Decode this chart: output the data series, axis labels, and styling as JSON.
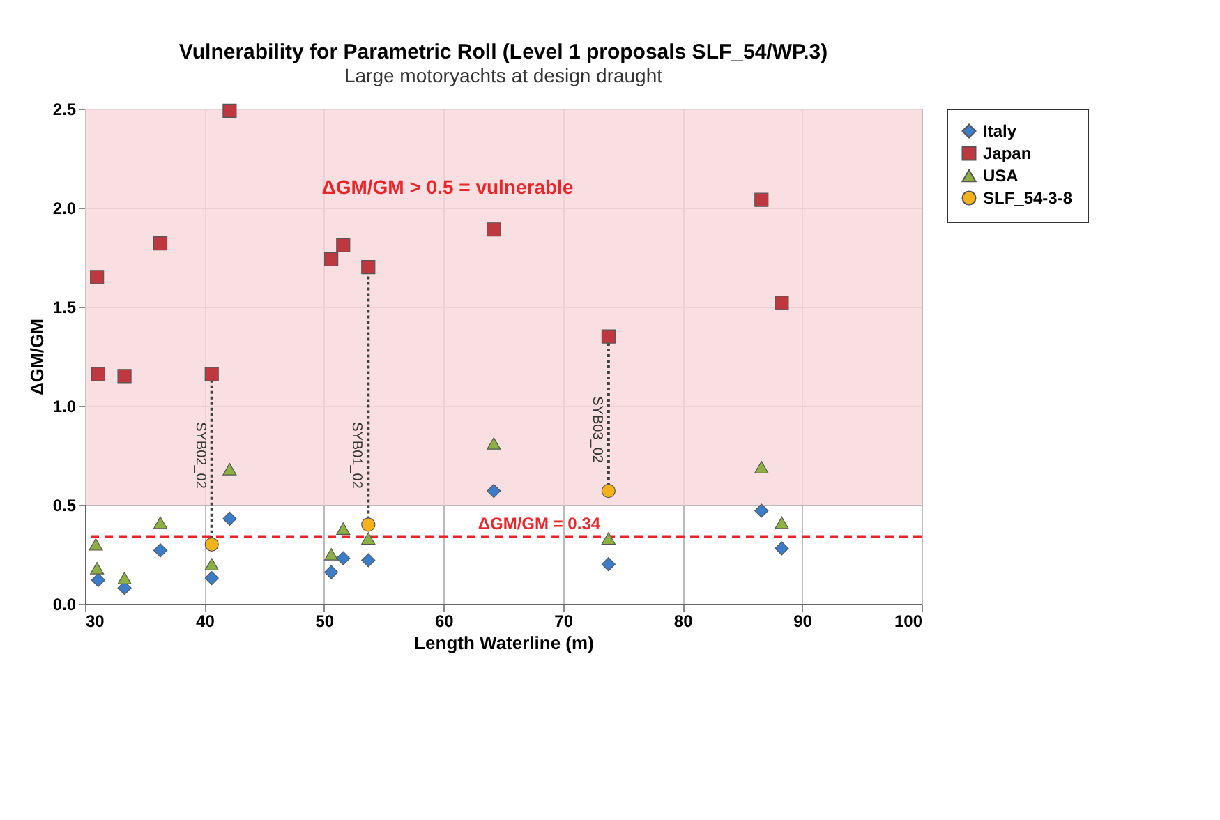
{
  "chart_data": {
    "type": "scatter",
    "title": "Vulnerability for Parametric Roll  (Level 1 proposals SLF_54/WP.3)",
    "subtitle": "Large motoryachts at design draught",
    "xlabel": "Length Waterline (m)",
    "ylabel": "ΔGM/GM",
    "xlim": [
      30,
      100
    ],
    "xticks": [
      30,
      40,
      50,
      60,
      70,
      80,
      90,
      100
    ],
    "ylim": [
      0,
      2.5
    ],
    "yticks": [
      {
        "value": 0,
        "label": "0.0"
      },
      0.5,
      {
        "value": 1,
        "label": "1.0"
      },
      1.5,
      {
        "value": 2,
        "label": "2.0"
      },
      2.5
    ],
    "grid": true,
    "legend": "right",
    "series": [
      {
        "name": "Italy",
        "color": "#3b7dc8",
        "marker": "diamond",
        "x": [
          31.1,
          33.3,
          36.3,
          40.6,
          42.1,
          50.6,
          51.6,
          53.7,
          64.2,
          73.8,
          86.6,
          88.3
        ],
        "values": [
          0.12,
          0.08,
          0.27,
          0.13,
          0.43,
          0.16,
          0.23,
          0.22,
          0.57,
          0.2,
          0.47,
          0.28
        ]
      },
      {
        "name": "Japan",
        "color": "#c0383f",
        "marker": "square",
        "x": [
          31.0,
          31.1,
          33.3,
          36.3,
          40.6,
          42.1,
          50.6,
          51.6,
          53.7,
          64.2,
          73.8,
          86.6,
          88.3
        ],
        "values": [
          1.65,
          1.16,
          1.15,
          1.82,
          1.16,
          2.49,
          1.74,
          1.81,
          1.7,
          1.89,
          1.35,
          2.04,
          1.52
        ]
      },
      {
        "name": "USA",
        "color": "#8db042",
        "marker": "triangle",
        "x": [
          30.9,
          31.0,
          33.3,
          36.3,
          40.6,
          42.1,
          50.6,
          51.6,
          53.7,
          64.2,
          73.8,
          86.6,
          88.3
        ],
        "values": [
          0.3,
          0.18,
          0.13,
          0.41,
          0.2,
          0.68,
          0.25,
          0.38,
          0.33,
          0.81,
          0.33,
          0.69,
          0.41
        ]
      },
      {
        "name": "SLF_54-3-8",
        "color": "#f5b21a",
        "marker": "circle",
        "x": [
          40.6,
          53.7,
          73.8
        ],
        "values": [
          0.3,
          0.4,
          0.57
        ]
      },
      {
        "type": "line",
        "color": "#404040",
        "line_style": "dotted",
        "x": [
          40.6,
          40.6
        ],
        "values": [
          0.3,
          1.16
        ]
      },
      {
        "type": "line",
        "color": "#404040",
        "line_style": "dotted",
        "x": [
          53.7,
          53.7
        ],
        "values": [
          0.4,
          1.7
        ]
      },
      {
        "type": "line",
        "color": "#404040",
        "line_style": "dotted",
        "x": [
          73.8,
          73.8
        ],
        "values": [
          0.57,
          1.35
        ]
      }
    ],
    "bands": [
      {
        "axis": "y",
        "from": 0.5,
        "to": 2.5,
        "label": "ΔGM/GM > 0.5 = vulnerable",
        "color": "#f8d7da"
      }
    ],
    "ref_lines": [
      {
        "axis": "y",
        "value": 0.34,
        "label": "ΔGM/GM = 0.34",
        "color": "#e8262a",
        "line_style": "dashed"
      }
    ],
    "annotations": [
      {
        "text": "SYB02_02",
        "x": 40.6,
        "y": 0.75
      },
      {
        "text": "SYB01_02",
        "x": 53.7,
        "y": 0.75
      },
      {
        "text": "SYB03_02",
        "x": 73.8,
        "y": 0.88
      }
    ]
  }
}
